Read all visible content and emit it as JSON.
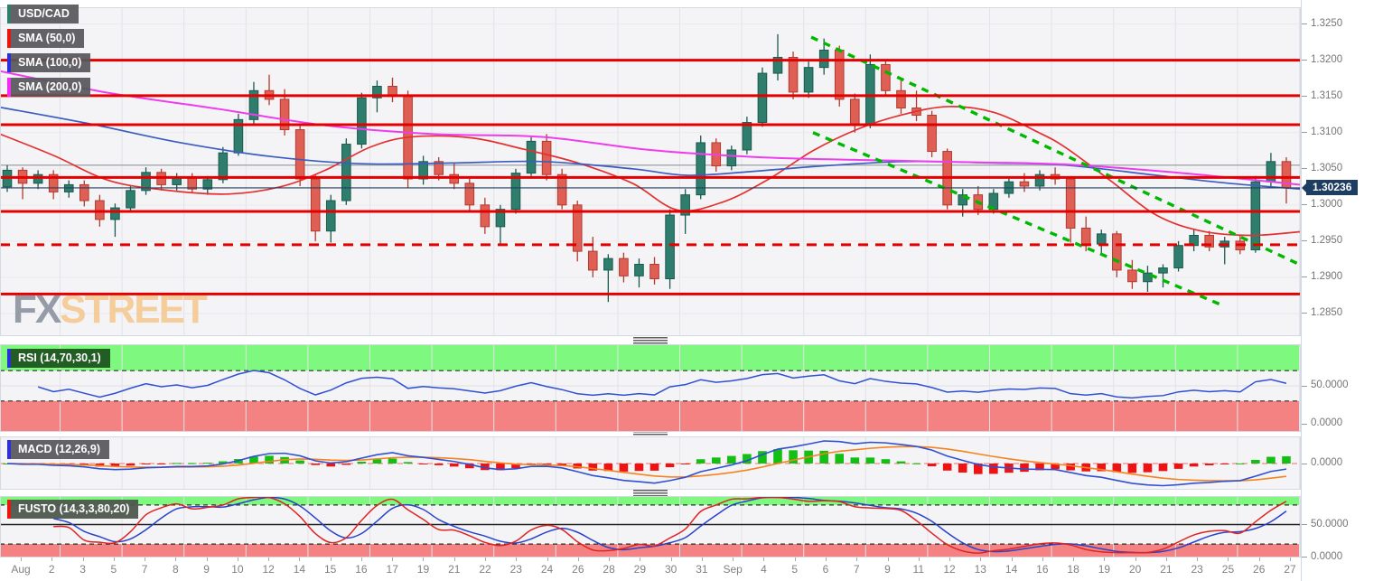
{
  "symbol_badge": "USD/CAD",
  "overlay_badges": [
    {
      "label": "SMA (50,0)",
      "accent": "#e8190c"
    },
    {
      "label": "SMA (100,0)",
      "accent": "#2d2fd8"
    },
    {
      "label": "SMA (200,0)",
      "accent": "#f32bf3"
    }
  ],
  "watermark": {
    "fx": "FX",
    "street": "STREET"
  },
  "price_tag": {
    "text": "1.30236",
    "bg": "#1d3d62"
  },
  "colors": {
    "up_fill": "#2e7d6d",
    "up_stroke": "#1c5a4d",
    "down_fill": "#df5f54",
    "down_stroke": "#b13a2f",
    "sr_line": "#e40000",
    "trendline_green": "#00b800",
    "sma50": "#e43030",
    "sma100": "#3b5cc0",
    "sma200": "#ee3cee",
    "gray_level": "#8e959d",
    "current_price_line": "#23405e",
    "rsi_line": "#2f50d4",
    "macd_line": "#2f50d4",
    "macd_signal": "#f5831f",
    "hist_pos": "#12bf12",
    "hist_neg": "#ef1212",
    "stoch_k": "#e02222",
    "stoch_d": "#2742cc",
    "zone_green": "#7ef87e",
    "zone_red": "#f58282",
    "symbol_accent": "#2f7d6d",
    "rsi_badge_bg": "#1d5420",
    "macd_zero": "#f29b9b",
    "plot_bg": "#f4f4f6",
    "grid_v": "#e3e3e8",
    "grid_h": "#e9e9ee",
    "watermark_fx": "#9097a3",
    "watermark_street": "#f4cb97"
  },
  "chart_data": [
    {
      "type": "candlestick",
      "title": "USD/CAD",
      "y_range": [
        1.282,
        1.3272
      ],
      "y_ticks": [
        1.325,
        1.32,
        1.315,
        1.31,
        1.305,
        1.3,
        1.295,
        1.29,
        1.285
      ],
      "current_price": 1.30236,
      "x_labels": [
        "Aug",
        "2",
        "3",
        "5",
        "7",
        "8",
        "9",
        "10",
        "12",
        "14",
        "15",
        "16",
        "17",
        "19",
        "21",
        "22",
        "23",
        "24",
        "26",
        "28",
        "29",
        "30",
        "31",
        "Sep",
        "4",
        "5",
        "6",
        "7",
        "9",
        "11",
        "12",
        "13",
        "14",
        "16",
        "18",
        "19",
        "20",
        "21",
        "23",
        "25",
        "26",
        "27"
      ],
      "candles_ohlc": [
        [
          1.3025,
          1.3055,
          1.3018,
          1.3048
        ],
        [
          1.3048,
          1.3052,
          1.3008,
          1.303
        ],
        [
          1.303,
          1.3048,
          1.3022,
          1.3042
        ],
        [
          1.3042,
          1.3048,
          1.3008,
          1.3018
        ],
        [
          1.3018,
          1.3034,
          1.301,
          1.3028
        ],
        [
          1.3028,
          1.3034,
          1.2998,
          1.3006
        ],
        [
          1.3006,
          1.3014,
          1.297,
          1.298
        ],
        [
          1.298,
          1.3002,
          1.2956,
          1.2996
        ],
        [
          1.2996,
          1.3026,
          1.299,
          1.302
        ],
        [
          1.302,
          1.3052,
          1.3014,
          1.3045
        ],
        [
          1.3045,
          1.305,
          1.302,
          1.3028
        ],
        [
          1.3028,
          1.3044,
          1.302,
          1.3038
        ],
        [
          1.3038,
          1.3044,
          1.3016,
          1.3022
        ],
        [
          1.3022,
          1.304,
          1.3014,
          1.3035
        ],
        [
          1.3035,
          1.308,
          1.303,
          1.3072
        ],
        [
          1.3072,
          1.3126,
          1.3068,
          1.3118
        ],
        [
          1.3118,
          1.317,
          1.3112,
          1.3158
        ],
        [
          1.3158,
          1.318,
          1.3138,
          1.3146
        ],
        [
          1.3146,
          1.316,
          1.3096,
          1.3104
        ],
        [
          1.3104,
          1.3112,
          1.3026,
          1.3036
        ],
        [
          1.3036,
          1.3042,
          1.295,
          1.2964
        ],
        [
          1.2964,
          1.3014,
          1.2948,
          1.3006
        ],
        [
          1.3006,
          1.3092,
          1.3,
          1.3084
        ],
        [
          1.3084,
          1.3155,
          1.3078,
          1.3148
        ],
        [
          1.3148,
          1.3172,
          1.3128,
          1.3164
        ],
        [
          1.3164,
          1.3176,
          1.3142,
          1.315
        ],
        [
          1.315,
          1.3158,
          1.3024,
          1.3036
        ],
        [
          1.3036,
          1.3068,
          1.3028,
          1.306
        ],
        [
          1.306,
          1.3066,
          1.3034,
          1.3042
        ],
        [
          1.3042,
          1.3058,
          1.3022,
          1.303
        ],
        [
          1.303,
          1.3036,
          1.2992,
          1.3
        ],
        [
          1.3,
          1.301,
          1.296,
          1.297
        ],
        [
          1.297,
          1.3,
          1.2946,
          1.2994
        ],
        [
          1.2994,
          1.305,
          1.2988,
          1.3044
        ],
        [
          1.3044,
          1.3094,
          1.304,
          1.3088
        ],
        [
          1.3088,
          1.3098,
          1.3034,
          1.3042
        ],
        [
          1.3042,
          1.305,
          1.2994,
          1.3
        ],
        [
          1.3,
          1.3006,
          1.2922,
          1.2936
        ],
        [
          1.2936,
          1.2956,
          1.29,
          1.291
        ],
        [
          1.291,
          1.2932,
          1.2866,
          1.2926
        ],
        [
          1.2926,
          1.2934,
          1.2893,
          1.2902
        ],
        [
          1.2902,
          1.2926,
          1.2886,
          1.2918
        ],
        [
          1.2918,
          1.2928,
          1.289,
          1.2898
        ],
        [
          1.2898,
          1.2994,
          1.2884,
          1.2986
        ],
        [
          1.2986,
          1.3022,
          1.296,
          1.3014
        ],
        [
          1.3014,
          1.3096,
          1.3008,
          1.3086
        ],
        [
          1.3086,
          1.3092,
          1.3046,
          1.3054
        ],
        [
          1.3054,
          1.3082,
          1.3048,
          1.3076
        ],
        [
          1.3076,
          1.3122,
          1.307,
          1.3114
        ],
        [
          1.3114,
          1.319,
          1.3108,
          1.3182
        ],
        [
          1.3182,
          1.3236,
          1.3172,
          1.3204
        ],
        [
          1.3204,
          1.3212,
          1.3146,
          1.3156
        ],
        [
          1.3156,
          1.3198,
          1.3148,
          1.319
        ],
        [
          1.319,
          1.323,
          1.318,
          1.3214
        ],
        [
          1.3214,
          1.322,
          1.3136,
          1.3146
        ],
        [
          1.3146,
          1.3154,
          1.31,
          1.311
        ],
        [
          1.311,
          1.3208,
          1.3106,
          1.3194
        ],
        [
          1.3194,
          1.32,
          1.315,
          1.3158
        ],
        [
          1.3158,
          1.3172,
          1.3126,
          1.3134
        ],
        [
          1.3134,
          1.3158,
          1.3116,
          1.3124
        ],
        [
          1.3124,
          1.313,
          1.3066,
          1.3074
        ],
        [
          1.3074,
          1.3078,
          1.2994,
          1.3
        ],
        [
          1.3,
          1.3022,
          1.2984,
          1.3014
        ],
        [
          1.3014,
          1.3026,
          1.2986,
          1.2994
        ],
        [
          1.2994,
          1.3022,
          1.2988,
          1.3016
        ],
        [
          1.3016,
          1.3038,
          1.301,
          1.3032
        ],
        [
          1.3032,
          1.3044,
          1.3018,
          1.3026
        ],
        [
          1.3026,
          1.3048,
          1.302,
          1.3042
        ],
        [
          1.3042,
          1.3052,
          1.3028,
          1.3036
        ],
        [
          1.3036,
          1.304,
          1.2948,
          1.2968
        ],
        [
          1.2968,
          1.2984,
          1.2936,
          1.2946
        ],
        [
          1.2946,
          1.2966,
          1.293,
          1.296
        ],
        [
          1.296,
          1.2964,
          1.29,
          1.291
        ],
        [
          1.291,
          1.2924,
          1.2884,
          1.2894
        ],
        [
          1.2894,
          1.2916,
          1.288,
          1.2906
        ],
        [
          1.2906,
          1.2918,
          1.2886,
          1.2913
        ],
        [
          1.2913,
          1.295,
          1.2908,
          1.2944
        ],
        [
          1.2944,
          1.2966,
          1.2936,
          1.2958
        ],
        [
          1.2958,
          1.2964,
          1.2936,
          1.2942
        ],
        [
          1.2942,
          1.2956,
          1.2918,
          1.295
        ],
        [
          1.295,
          1.2958,
          1.2932,
          1.2938
        ],
        [
          1.2938,
          1.304,
          1.2934,
          1.3032
        ],
        [
          1.3032,
          1.3072,
          1.3026,
          1.306
        ],
        [
          1.306,
          1.3066,
          1.3002,
          1.30236
        ]
      ],
      "sr_lines": [
        {
          "price": 1.32,
          "style": "solid"
        },
        {
          "price": 1.3151,
          "style": "solid"
        },
        {
          "price": 1.3111,
          "style": "solid"
        },
        {
          "price": 1.3038,
          "style": "solid"
        },
        {
          "price": 1.2991,
          "style": "solid"
        },
        {
          "price": 1.2945,
          "style": "dashed"
        },
        {
          "price": 1.2877,
          "style": "solid"
        }
      ],
      "gray_level_price": 1.3055,
      "trendlines": [
        {
          "x1": 898,
          "p1": 1.3232,
          "x2": 1440,
          "p2": 1.2917
        },
        {
          "x1": 900,
          "p1": 1.31,
          "x2": 1352,
          "p2": 1.2862
        }
      ],
      "sma_overlays": [
        {
          "name": "SMA 50",
          "color": "#e43030",
          "points": [
            [
              0,
              1.3098
            ],
            [
              60,
              1.3068
            ],
            [
              120,
              1.3034
            ],
            [
              180,
              1.3021
            ],
            [
              250,
              1.3015
            ],
            [
              310,
              1.3025
            ],
            [
              360,
              1.3048
            ],
            [
              410,
              1.308
            ],
            [
              455,
              1.3094
            ],
            [
              520,
              1.3093
            ],
            [
              580,
              1.3077
            ],
            [
              640,
              1.3058
            ],
            [
              700,
              1.303
            ],
            [
              750,
              1.2993
            ],
            [
              800,
              1.3004
            ],
            [
              850,
              1.3035
            ],
            [
              900,
              1.3075
            ],
            [
              950,
              1.3105
            ],
            [
              1000,
              1.3125
            ],
            [
              1050,
              1.3136
            ],
            [
              1100,
              1.3128
            ],
            [
              1150,
              1.31
            ],
            [
              1180,
              1.3079
            ],
            [
              1230,
              1.3033
            ],
            [
              1280,
              1.2986
            ],
            [
              1330,
              1.2964
            ],
            [
              1385,
              1.2958
            ],
            [
              1439,
              1.2963
            ]
          ]
        },
        {
          "name": "SMA 100",
          "color": "#3b5cc0",
          "points": [
            [
              0,
              1.3135
            ],
            [
              100,
              1.3112
            ],
            [
              200,
              1.3086
            ],
            [
              300,
              1.3067
            ],
            [
              400,
              1.3057
            ],
            [
              500,
              1.3058
            ],
            [
              600,
              1.306
            ],
            [
              700,
              1.305
            ],
            [
              760,
              1.3041
            ],
            [
              830,
              1.3046
            ],
            [
              900,
              1.3053
            ],
            [
              1000,
              1.306
            ],
            [
              1100,
              1.3058
            ],
            [
              1180,
              1.3055
            ],
            [
              1280,
              1.3041
            ],
            [
              1360,
              1.303
            ],
            [
              1439,
              1.3022
            ]
          ]
        },
        {
          "name": "SMA 200",
          "color": "#ee3cee",
          "points": [
            [
              0,
              1.3185
            ],
            [
              120,
              1.3155
            ],
            [
              240,
              1.3133
            ],
            [
              360,
              1.311
            ],
            [
              480,
              1.3098
            ],
            [
              600,
              1.3094
            ],
            [
              720,
              1.3076
            ],
            [
              840,
              1.3066
            ],
            [
              960,
              1.3062
            ],
            [
              1080,
              1.3059
            ],
            [
              1180,
              1.3056
            ],
            [
              1300,
              1.3045
            ],
            [
              1439,
              1.3028
            ]
          ]
        }
      ]
    },
    {
      "type": "line",
      "label": "RSI (14,70,30,1)",
      "period": 14,
      "overbought": 70,
      "oversold": 30,
      "scale": 1,
      "y_ticks": [
        50,
        0
      ],
      "derived_from": "closes of chart_data[0].candles_ohlc"
    },
    {
      "type": "macd",
      "label": "MACD (12,26,9)",
      "fast": 12,
      "slow": 26,
      "signal": 9,
      "y_ticks": [
        0
      ],
      "derived_from": "closes of chart_data[0].candles_ohlc"
    },
    {
      "type": "stochastic",
      "label": "FUSTO (14,3,3,80,20)",
      "k_period": 14,
      "k_smooth": 3,
      "d_smooth": 3,
      "upper": 80,
      "lower": 20,
      "y_ticks": [
        50,
        0
      ],
      "derived_from": "ohlc of chart_data[0].candles_ohlc"
    }
  ]
}
